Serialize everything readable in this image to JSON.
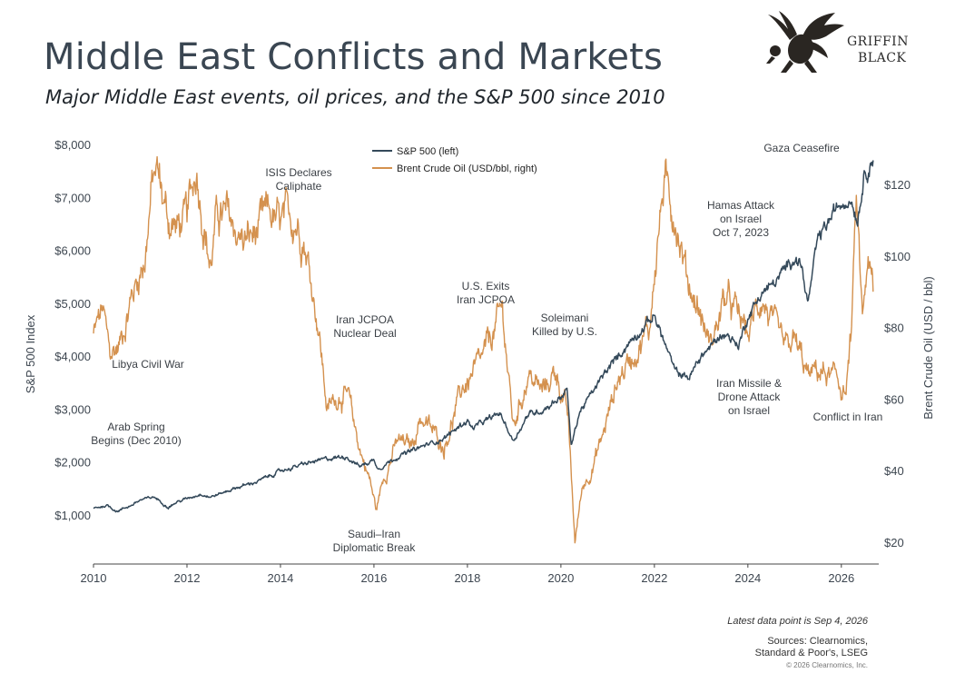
{
  "header": {
    "title": "Middle East Conflicts and Markets",
    "subtitle": "Major Middle East events, oil prices, and the S&P 500 since 2010"
  },
  "logo": {
    "line1": "GRIFFIN",
    "line2": "BLACK",
    "icon": "griffin-emblem"
  },
  "footer": {
    "latest": "Latest data point is Sep 4, 2026",
    "sources_1": "Sources: Clearnomics,",
    "sources_2": "Standard & Poor's, LSEG",
    "copyright": "© 2026 Clearnomics, Inc."
  },
  "chart_data": {
    "type": "line",
    "xlim": [
      2010,
      2026.8
    ],
    "x_ticks": [
      2010,
      2012,
      2014,
      2016,
      2018,
      2020,
      2022,
      2024,
      2026
    ],
    "x_tick_labels": [
      "2010",
      "2012",
      "2014",
      "2016",
      "2018",
      "2020",
      "2022",
      "2024",
      "2026"
    ],
    "ylabel": "S&P 500 Index",
    "ylim": [
      500,
      8000
    ],
    "y_ticks": [
      1000,
      2000,
      3000,
      4000,
      5000,
      6000,
      7000,
      8000
    ],
    "y_tick_labels": [
      "$1,000",
      "$2,000",
      "$3,000",
      "$4,000",
      "$5,000",
      "$6,000",
      "$7,000",
      "$8,000"
    ],
    "y2label": "Brent Crude Oil (USD / bbl)",
    "y2lim": [
      15,
      135
    ],
    "y2_ticks": [
      20,
      40,
      60,
      80,
      100,
      120
    ],
    "y2_tick_labels": [
      "$20",
      "$40",
      "$60",
      "$80",
      "$100",
      "$120"
    ],
    "grid": false,
    "legend_position": "top-center",
    "series": [
      {
        "name": "S&P 500 (left)",
        "axis": "left",
        "color": "#34495a",
        "x": [
          2010.0,
          2010.3,
          2010.5,
          2010.8,
          2011.0,
          2011.3,
          2011.6,
          2011.8,
          2012.0,
          2012.3,
          2012.5,
          2012.8,
          2013.0,
          2013.5,
          2014.0,
          2014.5,
          2015.0,
          2015.4,
          2015.7,
          2016.0,
          2016.1,
          2016.5,
          2017.0,
          2017.5,
          2018.0,
          2018.1,
          2018.7,
          2018.98,
          2019.3,
          2019.6,
          2020.0,
          2020.13,
          2020.22,
          2020.4,
          2020.7,
          2021.0,
          2021.5,
          2022.0,
          2022.45,
          2022.75,
          2023.0,
          2023.5,
          2023.8,
          2024.0,
          2024.3,
          2024.6,
          2025.0,
          2025.15,
          2025.28,
          2025.5,
          2025.8,
          2026.0,
          2026.2,
          2026.35,
          2026.5,
          2026.68
        ],
        "y": [
          1130,
          1180,
          1070,
          1180,
          1280,
          1340,
          1150,
          1250,
          1310,
          1400,
          1340,
          1430,
          1500,
          1630,
          1830,
          1960,
          2060,
          2110,
          1920,
          2040,
          1880,
          2100,
          2280,
          2450,
          2790,
          2640,
          2920,
          2400,
          2900,
          2980,
          3230,
          3380,
          2300,
          2950,
          3350,
          3750,
          4300,
          4770,
          3700,
          3600,
          4000,
          4450,
          4200,
          4750,
          5200,
          5400,
          5900,
          5700,
          4980,
          6200,
          6650,
          6900,
          7000,
          6600,
          7500,
          7700
        ]
      },
      {
        "name": "Brent Crude Oil (USD/bbl, right)",
        "axis": "right",
        "color": "#d4914e",
        "x": [
          2010.0,
          2010.2,
          2010.35,
          2010.55,
          2010.8,
          2011.1,
          2011.25,
          2011.35,
          2011.6,
          2011.8,
          2012.0,
          2012.2,
          2012.3,
          2012.5,
          2012.65,
          2012.9,
          2013.2,
          2013.5,
          2013.75,
          2014.0,
          2014.3,
          2014.5,
          2014.8,
          2015.0,
          2015.3,
          2015.45,
          2015.7,
          2015.9,
          2016.05,
          2016.2,
          2016.5,
          2016.8,
          2017.0,
          2017.5,
          2017.9,
          2018.3,
          2018.75,
          2018.98,
          2019.3,
          2019.6,
          2019.9,
          2020.15,
          2020.3,
          2020.45,
          2020.7,
          2020.9,
          2021.2,
          2021.6,
          2021.9,
          2022.0,
          2022.2,
          2022.45,
          2022.7,
          2022.95,
          2023.2,
          2023.5,
          2023.75,
          2024.0,
          2024.3,
          2024.6,
          2024.8,
          2025.0,
          2025.3,
          2025.5,
          2025.9,
          2026.1,
          2026.22,
          2026.32,
          2026.45,
          2026.55,
          2026.68
        ],
        "y": [
          78,
          85,
          72,
          75,
          88,
          100,
          119,
          124,
          110,
          108,
          110,
          125,
          116,
          97,
          112,
          110,
          104,
          106,
          112,
          108,
          111,
          106,
          82,
          57,
          62,
          60,
          46,
          38,
          29,
          38,
          48,
          47,
          55,
          47,
          63,
          70,
          85,
          52,
          67,
          62,
          68,
          55,
          20,
          35,
          42,
          50,
          65,
          74,
          80,
          96,
          120,
          112,
          94,
          85,
          75,
          88,
          84,
          78,
          89,
          78,
          73,
          76,
          66,
          68,
          65,
          62,
          80,
          114,
          82,
          98,
          90
        ]
      }
    ],
    "annotations": [
      {
        "lines": [
          "Libya Civil War"
        ]
      },
      {
        "lines": [
          "Arab Spring",
          "Begins (Dec 2010)"
        ]
      },
      {
        "lines": [
          "ISIS Declares",
          "Caliphate"
        ]
      },
      {
        "lines": [
          "Iran JCPOA",
          "Nuclear Deal"
        ]
      },
      {
        "lines": [
          "Saudi–Iran",
          "Diplomatic Break"
        ]
      },
      {
        "lines": [
          "U.S. Exits",
          "Iran JCPOA"
        ]
      },
      {
        "lines": [
          "Soleimani",
          "Killed by U.S."
        ]
      },
      {
        "lines": [
          "Hamas Attack",
          "on Israel",
          "Oct 7, 2023"
        ]
      },
      {
        "lines": [
          "Iran Missile &",
          "Drone Attack",
          "on Israel"
        ]
      },
      {
        "lines": [
          "Gaza Ceasefire"
        ]
      },
      {
        "lines": [
          "Conflict in Iran"
        ]
      }
    ]
  }
}
